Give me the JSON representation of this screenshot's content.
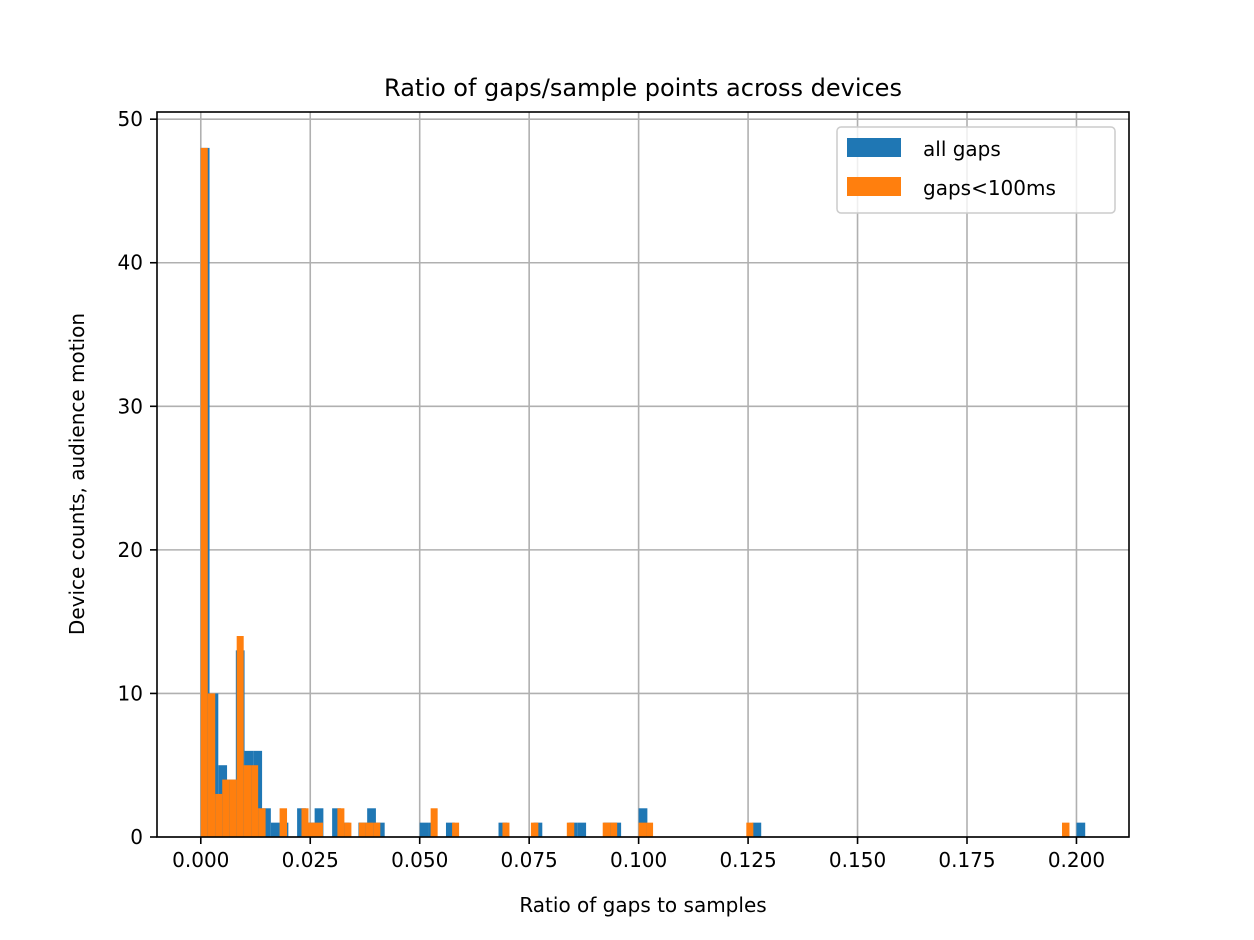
{
  "chart_data": {
    "type": "bar",
    "title": "Ratio of gaps/sample points across devices",
    "xlabel": "Ratio of gaps to samples",
    "ylabel": "Device counts, audience motion",
    "xlim": [
      -0.01,
      0.212
    ],
    "ylim": [
      0,
      50.5
    ],
    "x_ticks": [
      0.0,
      0.025,
      0.05,
      0.075,
      0.1,
      0.125,
      0.15,
      0.175,
      0.2
    ],
    "x_tick_labels": [
      "0.000",
      "0.025",
      "0.050",
      "0.075",
      "0.100",
      "0.125",
      "0.150",
      "0.175",
      "0.200"
    ],
    "y_ticks": [
      0,
      10,
      20,
      30,
      40,
      50
    ],
    "y_tick_labels": [
      "0",
      "10",
      "20",
      "30",
      "40",
      "50"
    ],
    "grid": true,
    "legend_position": "top-right",
    "series": [
      {
        "name": "all gaps",
        "color": "#1f77b4",
        "bars": [
          {
            "x0": 0.0,
            "x1": 0.002,
            "count": 48
          },
          {
            "x0": 0.002,
            "x1": 0.004,
            "count": 10
          },
          {
            "x0": 0.004,
            "x1": 0.006,
            "count": 5
          },
          {
            "x0": 0.006,
            "x1": 0.008,
            "count": 4
          },
          {
            "x0": 0.008,
            "x1": 0.01,
            "count": 13
          },
          {
            "x0": 0.01,
            "x1": 0.012,
            "count": 6
          },
          {
            "x0": 0.012,
            "x1": 0.014,
            "count": 6
          },
          {
            "x0": 0.014,
            "x1": 0.016,
            "count": 2
          },
          {
            "x0": 0.016,
            "x1": 0.018,
            "count": 1
          },
          {
            "x0": 0.018,
            "x1": 0.02,
            "count": 1
          },
          {
            "x0": 0.022,
            "x1": 0.024,
            "count": 2
          },
          {
            "x0": 0.024,
            "x1": 0.026,
            "count": 1
          },
          {
            "x0": 0.026,
            "x1": 0.028,
            "count": 2
          },
          {
            "x0": 0.03,
            "x1": 0.032,
            "count": 2
          },
          {
            "x0": 0.032,
            "x1": 0.034,
            "count": 1
          },
          {
            "x0": 0.036,
            "x1": 0.038,
            "count": 1
          },
          {
            "x0": 0.038,
            "x1": 0.04,
            "count": 2
          },
          {
            "x0": 0.04,
            "x1": 0.042,
            "count": 1
          },
          {
            "x0": 0.05,
            "x1": 0.052,
            "count": 1
          },
          {
            "x0": 0.052,
            "x1": 0.054,
            "count": 1
          },
          {
            "x0": 0.056,
            "x1": 0.058,
            "count": 1
          },
          {
            "x0": 0.068,
            "x1": 0.07,
            "count": 1
          },
          {
            "x0": 0.076,
            "x1": 0.078,
            "count": 1
          },
          {
            "x0": 0.084,
            "x1": 0.086,
            "count": 1
          },
          {
            "x0": 0.086,
            "x1": 0.088,
            "count": 1
          },
          {
            "x0": 0.092,
            "x1": 0.094,
            "count": 1
          },
          {
            "x0": 0.094,
            "x1": 0.096,
            "count": 1
          },
          {
            "x0": 0.1,
            "x1": 0.102,
            "count": 2
          },
          {
            "x0": 0.126,
            "x1": 0.128,
            "count": 1
          },
          {
            "x0": 0.2,
            "x1": 0.202,
            "count": 1
          }
        ]
      },
      {
        "name": "gaps<100ms",
        "color": "#ff7f0e",
        "bars": [
          {
            "x0": 0.0,
            "x1": 0.0016,
            "count": 48
          },
          {
            "x0": 0.0016,
            "x1": 0.0033,
            "count": 10
          },
          {
            "x0": 0.0033,
            "x1": 0.0049,
            "count": 3
          },
          {
            "x0": 0.0049,
            "x1": 0.0066,
            "count": 4
          },
          {
            "x0": 0.0066,
            "x1": 0.0082,
            "count": 4
          },
          {
            "x0": 0.0082,
            "x1": 0.0098,
            "count": 14
          },
          {
            "x0": 0.0098,
            "x1": 0.0115,
            "count": 5
          },
          {
            "x0": 0.0115,
            "x1": 0.0131,
            "count": 5
          },
          {
            "x0": 0.0131,
            "x1": 0.0148,
            "count": 2
          },
          {
            "x0": 0.018,
            "x1": 0.0197,
            "count": 2
          },
          {
            "x0": 0.023,
            "x1": 0.0246,
            "count": 2
          },
          {
            "x0": 0.0246,
            "x1": 0.0262,
            "count": 1
          },
          {
            "x0": 0.0262,
            "x1": 0.0279,
            "count": 1
          },
          {
            "x0": 0.0312,
            "x1": 0.0328,
            "count": 2
          },
          {
            "x0": 0.0328,
            "x1": 0.0344,
            "count": 1
          },
          {
            "x0": 0.0361,
            "x1": 0.0377,
            "count": 1
          },
          {
            "x0": 0.0377,
            "x1": 0.0394,
            "count": 1
          },
          {
            "x0": 0.0394,
            "x1": 0.041,
            "count": 1
          },
          {
            "x0": 0.0525,
            "x1": 0.0541,
            "count": 2
          },
          {
            "x0": 0.0574,
            "x1": 0.059,
            "count": 1
          },
          {
            "x0": 0.0689,
            "x1": 0.0705,
            "count": 1
          },
          {
            "x0": 0.0754,
            "x1": 0.0771,
            "count": 1
          },
          {
            "x0": 0.0836,
            "x1": 0.0853,
            "count": 1
          },
          {
            "x0": 0.0918,
            "x1": 0.0935,
            "count": 1
          },
          {
            "x0": 0.0935,
            "x1": 0.0951,
            "count": 1
          },
          {
            "x0": 0.1,
            "x1": 0.1017,
            "count": 1
          },
          {
            "x0": 0.1017,
            "x1": 0.1033,
            "count": 1
          },
          {
            "x0": 0.1246,
            "x1": 0.1262,
            "count": 1
          },
          {
            "x0": 0.1967,
            "x1": 0.1984,
            "count": 1
          }
        ]
      }
    ]
  }
}
